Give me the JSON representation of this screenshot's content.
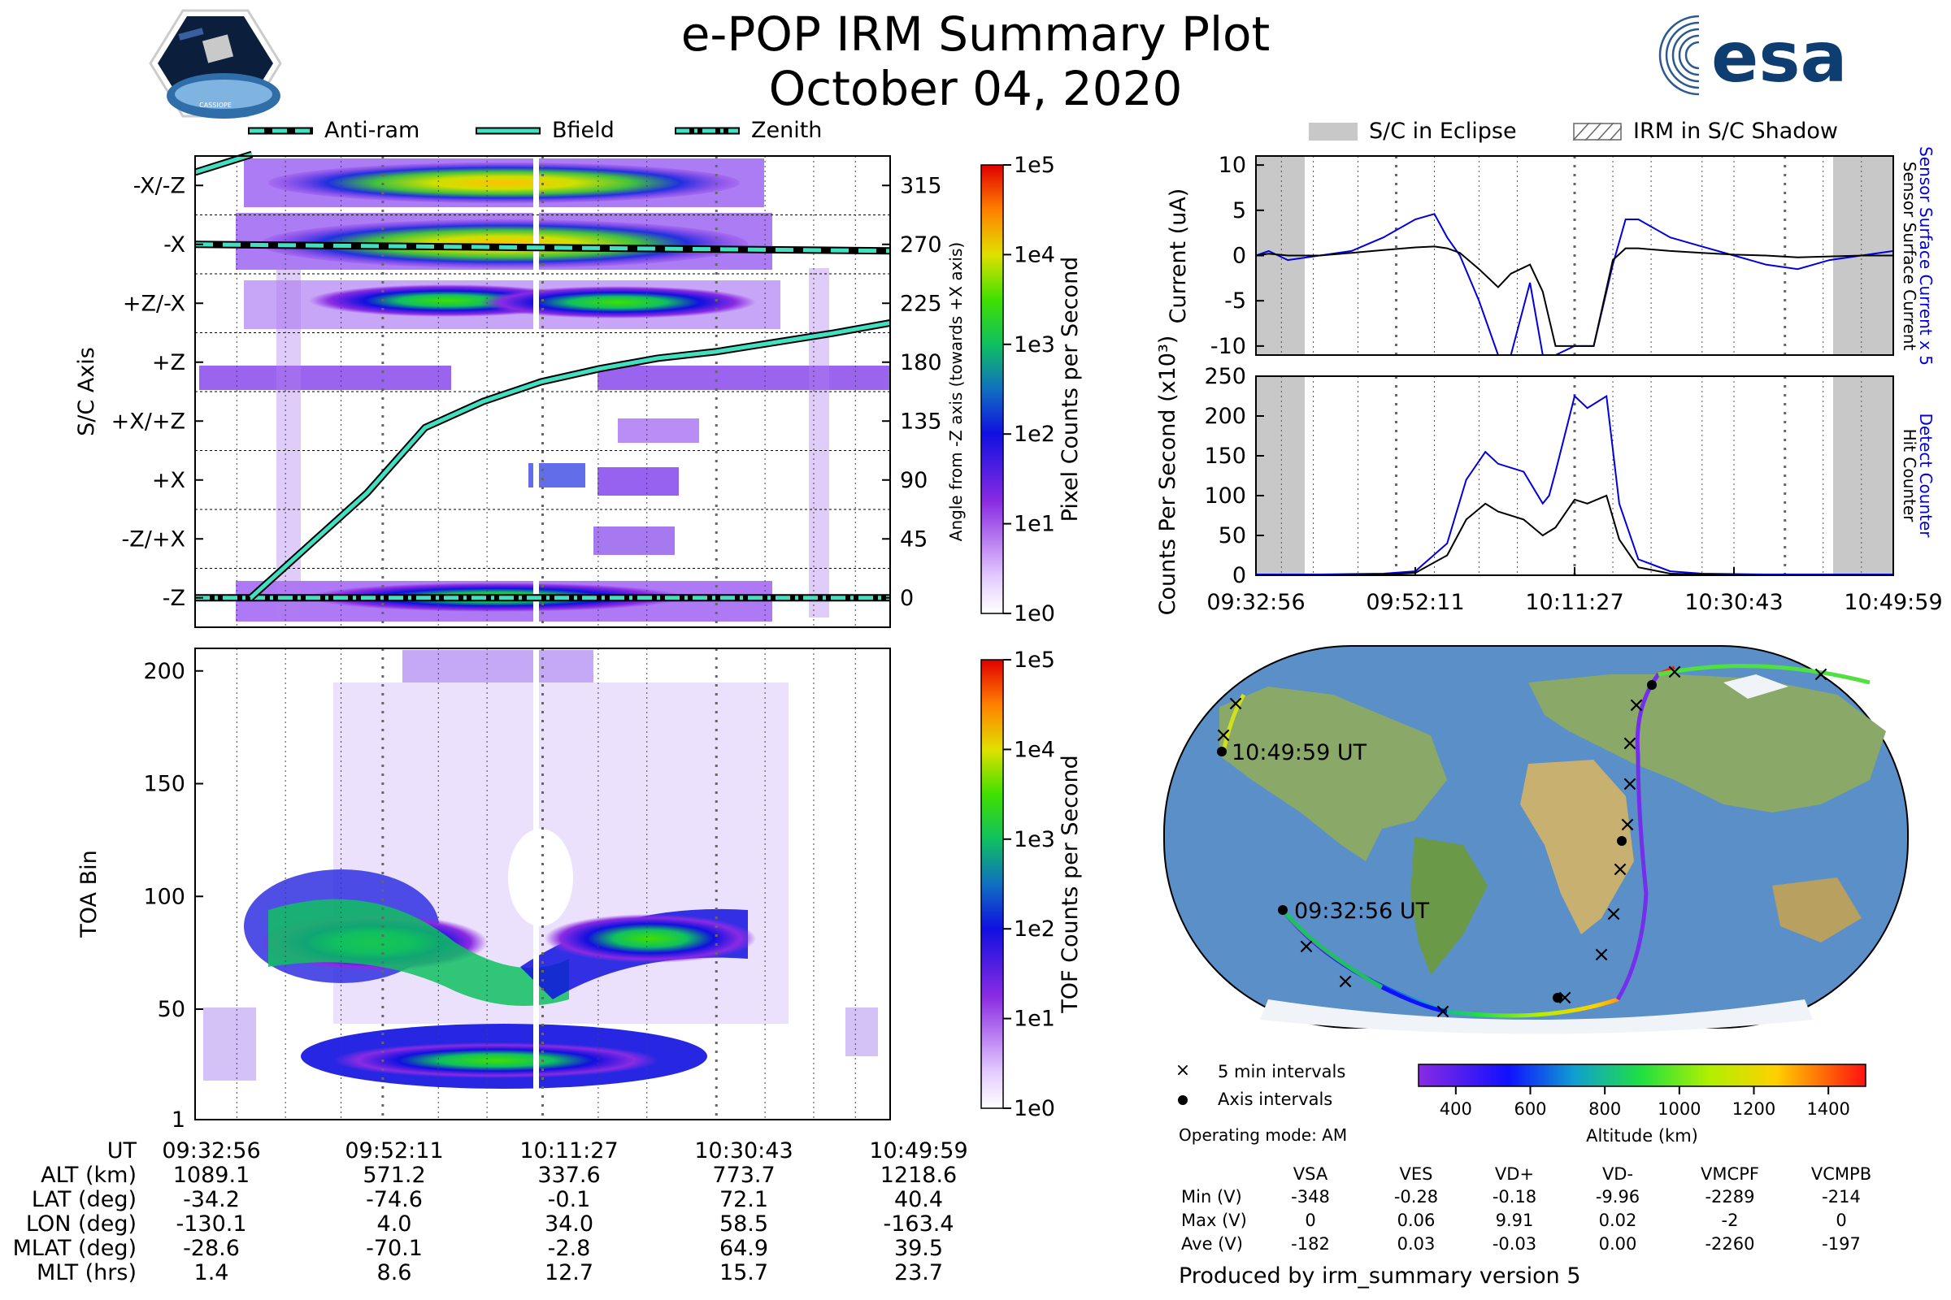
{
  "header": {
    "title": "e-POP IRM Summary Plot",
    "date": "October 04, 2020",
    "esa_logo_text": "esa",
    "cassiope_badge_text": "CASSIOPE"
  },
  "top_legend": {
    "anti_ram": "Anti-ram",
    "bfield": "Bfield",
    "zenith": "Zenith"
  },
  "right_legend": {
    "eclipse": "S/C in Eclipse",
    "shadow": "IRM in S/C Shadow"
  },
  "chart_data": [
    {
      "id": "scaxis",
      "type": "heatmap",
      "ylabel": "S/C Axis",
      "y2label": "Angle from -Z axis (towards +X axis)",
      "categories": [
        "-X/-Z",
        "-X",
        "+Z/-X",
        "+Z",
        "+X/+Z",
        "+X",
        "-Z/+X",
        "-Z"
      ],
      "right_ticks": [
        "315",
        "270",
        "225",
        "180",
        "135",
        "90",
        "45",
        "0"
      ],
      "colorbar_label": "Pixel Counts per Second",
      "colorbar_ticks": [
        "1e5",
        "1e4",
        "1e3",
        "1e2",
        "1e1",
        "1e0"
      ],
      "bfield_angle": [
        0,
        40,
        80,
        130,
        150,
        165,
        175,
        183,
        188,
        195,
        202,
        210
      ],
      "antiram_angle": 270,
      "zenith_angle": 0
    },
    {
      "id": "toa",
      "type": "heatmap",
      "ylabel": "TOA Bin",
      "yticks": [
        "200",
        "150",
        "100",
        "50",
        "1"
      ],
      "ylim": [
        1,
        210
      ],
      "colorbar_label": "TOF Counts per Second",
      "colorbar_ticks": [
        "1e5",
        "1e4",
        "1e3",
        "1e2",
        "1e1",
        "1e0"
      ]
    },
    {
      "id": "current",
      "type": "line",
      "ylabel": "Current (uA)",
      "y2label_blue": "Sensor Surface Current x 5",
      "y2label_black": "Sensor Surface Current",
      "yticks": [
        "10",
        "5",
        "0",
        "-5",
        "-10"
      ],
      "ylim": [
        -11,
        11
      ],
      "x": [
        0,
        0.02,
        0.05,
        0.1,
        0.15,
        0.2,
        0.25,
        0.28,
        0.3,
        0.32,
        0.35,
        0.38,
        0.4,
        0.43,
        0.45,
        0.47,
        0.5,
        0.53,
        0.56,
        0.58,
        0.6,
        0.65,
        0.7,
        0.75,
        0.8,
        0.85,
        0.9,
        0.95,
        1.0
      ],
      "series": [
        {
          "name": "Sensor Surface Current x 5",
          "color": "#0000dd",
          "values": [
            0,
            0.5,
            -0.5,
            0,
            0.5,
            2,
            4,
            4.6,
            2,
            0,
            -5,
            -11,
            -11,
            -3,
            -11,
            -11,
            -10,
            -10,
            -1,
            4,
            4,
            2,
            1,
            0,
            -1,
            -1.5,
            -0.5,
            0,
            0.5
          ]
        },
        {
          "name": "Sensor Surface Current",
          "color": "#000000",
          "values": [
            0,
            0.2,
            0,
            0,
            0.3,
            0.6,
            0.9,
            1,
            0.8,
            0.3,
            -1.5,
            -3.5,
            -2,
            -1,
            -4,
            -10,
            -10,
            -10,
            -0.5,
            0.8,
            0.8,
            0.5,
            0.3,
            0.1,
            0,
            -0.2,
            -0.1,
            0,
            0
          ]
        }
      ]
    },
    {
      "id": "counts",
      "type": "line",
      "ylabel": "Counts Per Second (x10³)",
      "y2label_blue": "Detect Counter",
      "y2label_black": "Hit Counter",
      "yticks": [
        "250",
        "200",
        "150",
        "100",
        "50",
        "0"
      ],
      "ylim": [
        0,
        250
      ],
      "xticks": [
        "09:32:56",
        "09:52:11",
        "10:11:27",
        "10:30:43",
        "10:49:59"
      ],
      "x": [
        0,
        0.1,
        0.2,
        0.25,
        0.3,
        0.33,
        0.36,
        0.38,
        0.42,
        0.45,
        0.46,
        0.47,
        0.5,
        0.52,
        0.55,
        0.57,
        0.6,
        0.65,
        0.7,
        0.8,
        0.9,
        1.0
      ],
      "series": [
        {
          "name": "Detect Counter",
          "color": "#0000dd",
          "values": [
            1,
            1,
            2,
            5,
            40,
            120,
            155,
            140,
            130,
            90,
            100,
            130,
            225,
            210,
            225,
            90,
            20,
            5,
            2,
            1,
            1,
            1
          ]
        },
        {
          "name": "Hit Counter",
          "color": "#000000",
          "values": [
            0,
            0,
            1,
            3,
            25,
            70,
            90,
            80,
            70,
            50,
            55,
            60,
            95,
            90,
            100,
            45,
            10,
            2,
            1,
            0,
            0,
            0
          ]
        }
      ]
    },
    {
      "id": "map",
      "type": "scatter",
      "labels": [
        "10:49:59 UT",
        "09:32:56 UT"
      ],
      "colorbar_label": "Altitude (km)",
      "colorbar_ticks": [
        "400",
        "600",
        "800",
        "1000",
        "1200",
        "1400"
      ],
      "crange": [
        300,
        1500
      ],
      "legend_5min": "5 min intervals",
      "legend_axis": "Axis intervals",
      "operating_mode": "Operating mode: AM"
    }
  ],
  "ut_table": {
    "rows": [
      {
        "label": "UT",
        "values": [
          "09:32:56",
          "09:52:11",
          "10:11:27",
          "10:30:43",
          "10:49:59"
        ]
      },
      {
        "label": "ALT (km)",
        "values": [
          "1089.1",
          "571.2",
          "337.6",
          "773.7",
          "1218.6"
        ]
      },
      {
        "label": "LAT (deg)",
        "values": [
          "-34.2",
          "-74.6",
          "-0.1",
          "72.1",
          "40.4"
        ]
      },
      {
        "label": "LON (deg)",
        "values": [
          "-130.1",
          "4.0",
          "34.0",
          "58.5",
          "-163.4"
        ]
      },
      {
        "label": "MLAT (deg)",
        "values": [
          "-28.6",
          "-70.1",
          "-2.8",
          "64.9",
          "39.5"
        ]
      },
      {
        "label": "MLT (hrs)",
        "values": [
          "1.4",
          "8.6",
          "12.7",
          "15.7",
          "23.7"
        ]
      }
    ]
  },
  "voltages": {
    "headers": [
      "VSA",
      "VES",
      "VD+",
      "VD-",
      "VMCPF",
      "VCMPB"
    ],
    "rows": [
      {
        "label": "Min (V)",
        "values": [
          "-348",
          "-0.28",
          "-0.18",
          "-9.96",
          "-2289",
          "-214"
        ]
      },
      {
        "label": "Max (V)",
        "values": [
          "0",
          "0.06",
          "9.91",
          "0.02",
          "-2",
          "0"
        ]
      },
      {
        "label": "Ave (V)",
        "values": [
          "-182",
          "0.03",
          "-0.03",
          "0.00",
          "-2260",
          "-197"
        ]
      }
    ]
  },
  "footer": {
    "produced_by": "Produced by irm_summary version 5"
  }
}
